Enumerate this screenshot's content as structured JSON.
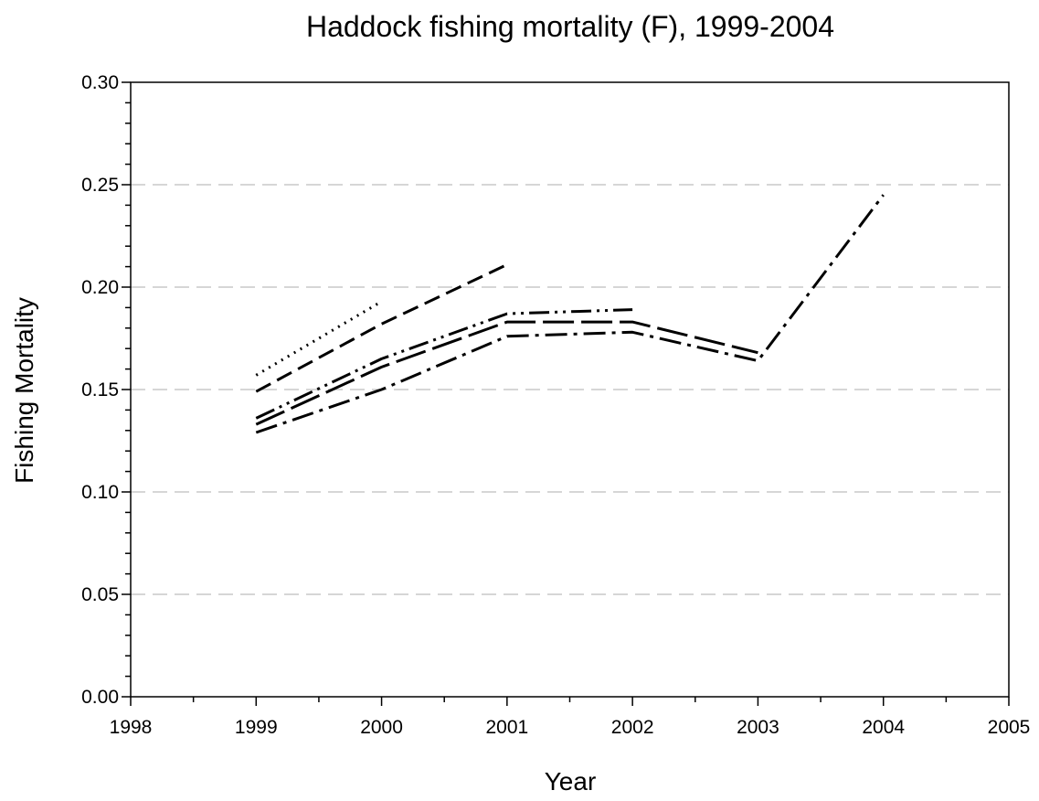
{
  "chart_data": {
    "type": "line",
    "title": "Haddock fishing mortality (F), 1999-2004",
    "xlabel": "Year",
    "ylabel": "Fishing Mortality",
    "xlim": [
      1998,
      2005
    ],
    "ylim": [
      0,
      0.3
    ],
    "xticks": [
      "1998",
      "1999",
      "2000",
      "2001",
      "2002",
      "2003",
      "2004",
      "2005"
    ],
    "yticks": [
      "0.00",
      "0.05",
      "0.10",
      "0.15",
      "0.20",
      "0.25",
      "0.30"
    ],
    "grid": "horizontal dashed",
    "line_color": "#000000",
    "grid_color": "#c8c8c8",
    "series": [
      {
        "style": "dotted",
        "x": [
          1999,
          2000
        ],
        "values": [
          0.157,
          0.193
        ]
      },
      {
        "style": "dashed",
        "x": [
          1999,
          2000,
          2001
        ],
        "values": [
          0.149,
          0.182,
          0.211
        ]
      },
      {
        "style": "dash-dot-dot",
        "x": [
          1999,
          2000,
          2001,
          2002
        ],
        "values": [
          0.136,
          0.165,
          0.187,
          0.189
        ]
      },
      {
        "style": "long-dash",
        "x": [
          1999,
          2000,
          2001,
          2002,
          2003
        ],
        "values": [
          0.133,
          0.161,
          0.183,
          0.183,
          0.168
        ]
      },
      {
        "style": "dash-dot",
        "x": [
          1999,
          2000,
          2001,
          2002,
          2003,
          2004
        ],
        "values": [
          0.129,
          0.15,
          0.176,
          0.178,
          0.164,
          0.245
        ]
      }
    ]
  }
}
